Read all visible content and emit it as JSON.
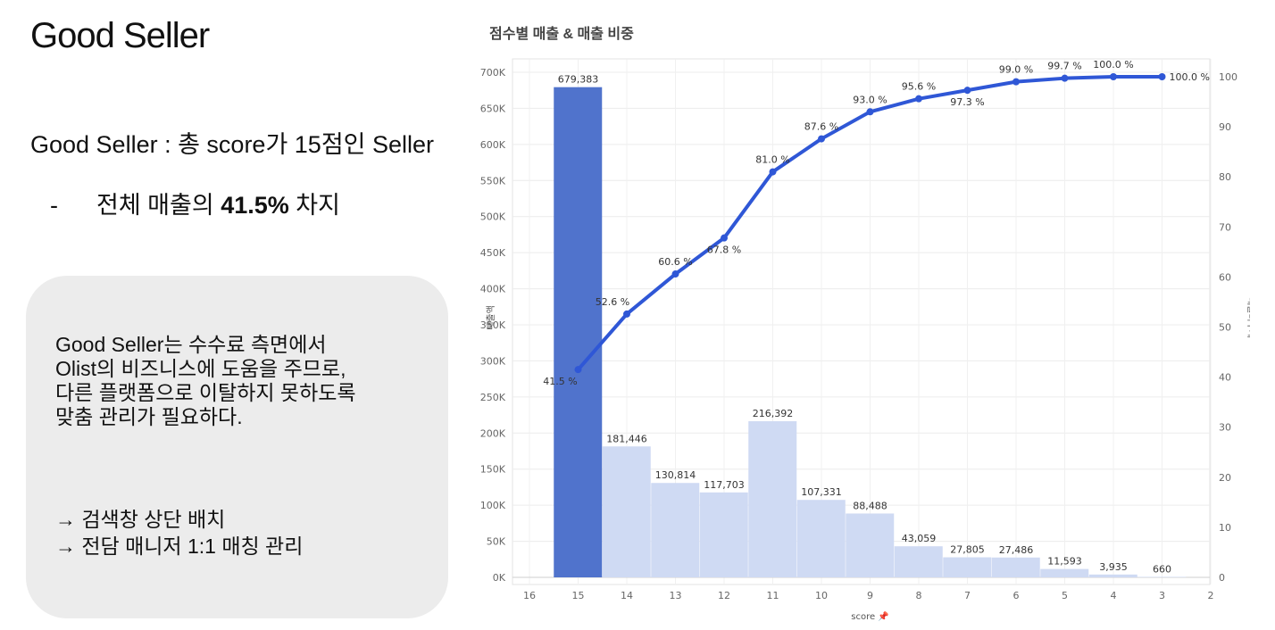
{
  "left_panel": {
    "title": "Good Seller",
    "definition": "Good Seller : 총 score가 15점인 Seller",
    "bullet_dash": "-",
    "bullet_prefix": "전체 매출의 ",
    "bullet_bold": "41.5%",
    "bullet_suffix": " 차지",
    "note_lines": [
      "Good Seller는 수수료 측면에서",
      "Olist의 비즈니스에 도움을 주므로,",
      "다른 플랫폼으로 이탈하지 못하도록",
      "맞춤 관리가 필요하다."
    ],
    "actions": [
      "→ 검색창 상단 배치",
      "→ 전담 매니저 1:1 매칭 관리"
    ]
  },
  "chart_data": {
    "type": "bar",
    "title": "점수별 매출 & 매출 비중",
    "xlabel": "score",
    "ylabel": "매출액",
    "y2label": "매출비누계",
    "categories": [
      "15",
      "14",
      "13",
      "12",
      "11",
      "10",
      "9",
      "8",
      "7",
      "6",
      "5",
      "4",
      "3"
    ],
    "x_ticks": [
      "16",
      "15",
      "14",
      "13",
      "12",
      "11",
      "10",
      "9",
      "8",
      "7",
      "6",
      "5",
      "4",
      "3",
      "2"
    ],
    "ylim": [
      0,
      700000
    ],
    "y_ticks": [
      "0K",
      "50K",
      "100K",
      "150K",
      "200K",
      "250K",
      "300K",
      "350K",
      "400K",
      "450K",
      "500K",
      "550K",
      "600K",
      "650K",
      "700K"
    ],
    "y2lim": [
      0,
      100
    ],
    "y2_ticks": [
      "0",
      "10",
      "20",
      "30",
      "40",
      "50",
      "60",
      "70",
      "80",
      "90",
      "100"
    ],
    "series": [
      {
        "values": [
          679383,
          181446,
          130814,
          117703,
          216392,
          107331,
          88488,
          43059,
          27805,
          27486,
          11593,
          3935,
          660
        ],
        "labels": [
          "679,383",
          "181,446",
          "130,814",
          "117,703",
          "216,392",
          "107,331",
          "88,488",
          "43,059",
          "27,805",
          "27,486",
          "11,593",
          "3,935",
          "660"
        ]
      },
      {
        "type": "line",
        "axis": "right",
        "values": [
          41.5,
          52.6,
          60.6,
          67.8,
          81.0,
          87.6,
          93.0,
          95.6,
          97.3,
          99.0,
          99.7,
          100.0,
          100.0
        ],
        "labels": [
          "41.5 %",
          "52.6 %",
          "60.6 %",
          "67.8 %",
          "81.0 %",
          "87.6 %",
          "93.0 %",
          "95.6 %",
          "97.3 %",
          "99.0 %",
          "99.7 %",
          "100.0 %",
          "100.0 %"
        ]
      }
    ],
    "grid": true,
    "colors": {
      "highlight_bar": "#5073cc",
      "bar": "#cfdaf3",
      "line": "#2f57d6"
    }
  }
}
